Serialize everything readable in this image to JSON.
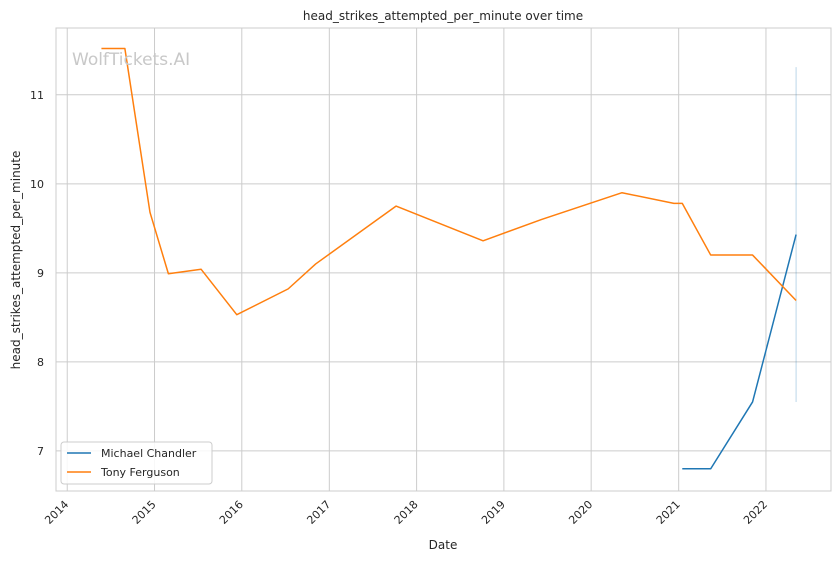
{
  "chart_data": {
    "type": "line",
    "title": "head_strikes_attempted_per_minute over time",
    "xlabel": "Date",
    "ylabel": "head_strikes_attempted_per_minute",
    "xlim": [
      "2013-11-15",
      "2022-09-30"
    ],
    "ylim": [
      6.55,
      11.75
    ],
    "x_ticks": [
      "2014",
      "2015",
      "2016",
      "2017",
      "2018",
      "2019",
      "2020",
      "2021",
      "2022"
    ],
    "y_ticks": [
      7,
      8,
      9,
      10,
      11
    ],
    "grid": true,
    "legend_position": "lower-left",
    "watermark": "WolfTickets.AI",
    "series": [
      {
        "name": "Michael Chandler",
        "color": "#1f77b4",
        "points": [
          {
            "x": "2021-01-16",
            "y": 6.8
          },
          {
            "x": "2021-05-15",
            "y": 6.8
          },
          {
            "x": "2021-11-06",
            "y": 7.55
          },
          {
            "x": "2022-05-07",
            "y": 9.43
          }
        ],
        "error_bar": {
          "x": "2022-05-07",
          "low": 7.55,
          "high": 11.31
        }
      },
      {
        "name": "Tony Ferguson",
        "color": "#ff7f0e",
        "points": [
          {
            "x": "2014-05-24",
            "y": 11.52
          },
          {
            "x": "2014-08-30",
            "y": 11.52
          },
          {
            "x": "2014-12-13",
            "y": 9.68
          },
          {
            "x": "2015-02-28",
            "y": 8.99
          },
          {
            "x": "2015-07-15",
            "y": 9.04
          },
          {
            "x": "2015-12-11",
            "y": 8.53
          },
          {
            "x": "2016-07-13",
            "y": 8.82
          },
          {
            "x": "2016-11-05",
            "y": 9.1
          },
          {
            "x": "2017-10-07",
            "y": 9.75
          },
          {
            "x": "2018-10-06",
            "y": 9.36
          },
          {
            "x": "2019-06-08",
            "y": 9.6
          },
          {
            "x": "2020-05-09",
            "y": 9.9
          },
          {
            "x": "2020-12-12",
            "y": 9.78
          },
          {
            "x": "2021-01-16",
            "y": 9.78
          },
          {
            "x": "2021-05-15",
            "y": 9.2
          },
          {
            "x": "2021-11-06",
            "y": 9.2
          },
          {
            "x": "2022-05-07",
            "y": 8.69
          }
        ]
      }
    ]
  }
}
